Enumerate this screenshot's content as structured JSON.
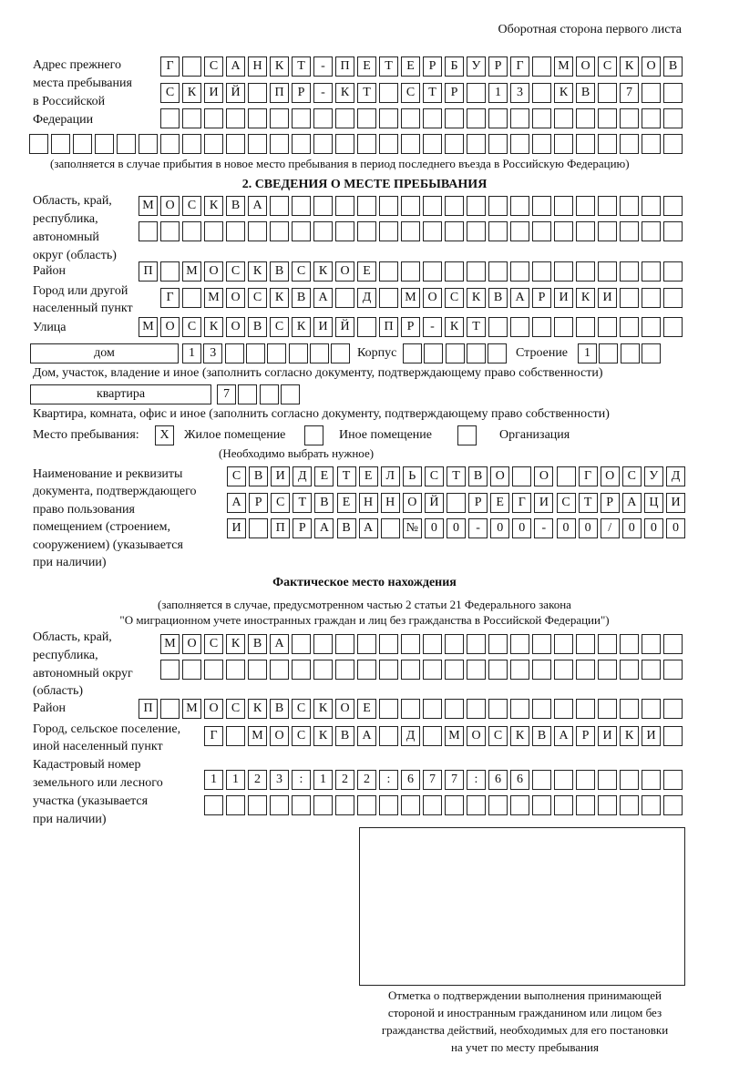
{
  "header": "Оборотная сторона первого листа",
  "prev_address": {
    "label": [
      "Адрес прежнего",
      "места пребывания",
      "в Российской",
      "Федерации"
    ],
    "rows": [
      [
        "Г",
        "",
        "С",
        "А",
        "Н",
        "К",
        "Т",
        "-",
        "П",
        "Е",
        "Т",
        "Е",
        "Р",
        "Б",
        "У",
        "Р",
        "Г",
        "",
        "М",
        "О",
        "С",
        "К",
        "О",
        "В"
      ],
      [
        "С",
        "К",
        "И",
        "Й",
        "",
        "П",
        "Р",
        "-",
        "К",
        "Т",
        "",
        "С",
        "Т",
        "Р",
        "",
        "1",
        "3",
        "",
        "К",
        "В",
        "",
        "7",
        "",
        ""
      ],
      [
        "",
        "",
        "",
        "",
        "",
        "",
        "",
        "",
        "",
        "",
        "",
        "",
        "",
        "",
        "",
        "",
        "",
        "",
        "",
        "",
        "",
        "",
        "",
        ""
      ],
      [
        "",
        "",
        "",
        "",
        "",
        "",
        "",
        "",
        "",
        "",
        "",
        "",
        "",
        "",
        "",
        "",
        "",
        "",
        "",
        "",
        "",
        "",
        "",
        "",
        "",
        "",
        "",
        "",
        "",
        ""
      ]
    ],
    "note": "(заполняется в случае прибытия в новое место пребывания в период последнего въезда в Российскую Федерацию)"
  },
  "section2": {
    "title": "2. СВЕДЕНИЯ О МЕСТЕ ПРЕБЫВАНИЯ",
    "region_label": [
      "Область, край,",
      "республика,",
      "автономный",
      "округ (область)"
    ],
    "region_rows": [
      [
        "М",
        "О",
        "С",
        "К",
        "В",
        "А",
        "",
        "",
        "",
        "",
        "",
        "",
        "",
        "",
        "",
        "",
        "",
        "",
        "",
        "",
        "",
        "",
        "",
        "",
        ""
      ],
      [
        "",
        "",
        "",
        "",
        "",
        "",
        "",
        "",
        "",
        "",
        "",
        "",
        "",
        "",
        "",
        "",
        "",
        "",
        "",
        "",
        "",
        "",
        "",
        "",
        ""
      ]
    ],
    "district_label": "Район",
    "district": [
      "П",
      "",
      "М",
      "О",
      "С",
      "К",
      "В",
      "С",
      "К",
      "О",
      "Е",
      "",
      "",
      "",
      "",
      "",
      "",
      "",
      "",
      "",
      "",
      "",
      "",
      "",
      ""
    ],
    "city_label": [
      "Город или другой",
      "населенный пункт"
    ],
    "city": [
      "Г",
      "",
      "М",
      "О",
      "С",
      "К",
      "В",
      "А",
      "",
      "Д",
      "",
      "М",
      "О",
      "С",
      "К",
      "В",
      "А",
      "Р",
      "И",
      "К",
      "И",
      "",
      "",
      ""
    ],
    "street_label": "Улица",
    "street": [
      "М",
      "О",
      "С",
      "К",
      "О",
      "В",
      "С",
      "К",
      "И",
      "Й",
      "",
      "П",
      "Р",
      "-",
      "К",
      "Т",
      "",
      "",
      "",
      "",
      "",
      "",
      "",
      "",
      ""
    ],
    "house_type": "дом",
    "house": [
      "1",
      "3",
      "",
      "",
      "",
      "",
      "",
      ""
    ],
    "korpus_label": "Корпус",
    "korpus": [
      "",
      "",
      "",
      "",
      ""
    ],
    "stroenie_label": "Строение",
    "stroenie": [
      "1",
      "",
      "",
      ""
    ],
    "house_note": "Дом, участок, владение и иное (заполнить согласно документу, подтверждающему право собственности)",
    "flat_type": "квартира",
    "flat": [
      "7",
      "",
      "",
      ""
    ],
    "flat_note": "Квартира, комната, офис и иное (заполнить согласно документу, подтверждающему право собственности)",
    "stay_label": "Место пребывания:",
    "stay_options": [
      {
        "mark": "X",
        "label": "Жилое помещение",
        "checked": true
      },
      {
        "mark": "",
        "label": "Иное помещение",
        "checked": false
      },
      {
        "mark": "",
        "label": "Организация",
        "checked": false
      }
    ],
    "stay_note": "(Необходимо выбрать нужное)",
    "doc_label": [
      "Наименование и реквизиты",
      "документа, подтверждающего",
      "право пользования",
      "помещением (строением,",
      "сооружением) (указывается",
      "при наличии)"
    ],
    "doc_rows": [
      [
        "С",
        "В",
        "И",
        "Д",
        "Е",
        "Т",
        "Е",
        "Л",
        "Ь",
        "С",
        "Т",
        "В",
        "О",
        "",
        "О",
        "",
        "Г",
        "О",
        "С",
        "У",
        "Д"
      ],
      [
        "А",
        "Р",
        "С",
        "Т",
        "В",
        "Е",
        "Н",
        "Н",
        "О",
        "Й",
        "",
        "Р",
        "Е",
        "Г",
        "И",
        "С",
        "Т",
        "Р",
        "А",
        "Ц",
        "И"
      ],
      [
        "И",
        "",
        "П",
        "Р",
        "А",
        "В",
        "А",
        "",
        "№",
        "0",
        "0",
        "-",
        "0",
        "0",
        "-",
        "0",
        "0",
        "/",
        "0",
        "0",
        "0"
      ]
    ]
  },
  "actual": {
    "title": "Фактическое место нахождения",
    "note": [
      "(заполняется в случае, предусмотренном частью 2 статьи 21 Федерального закона",
      "\"О миграционном учете иностранных граждан и лиц без гражданства в Российской Федерации\")"
    ],
    "region_label": [
      "Область, край,",
      "республика,",
      "автономный округ",
      "(область)"
    ],
    "region_rows": [
      [
        "М",
        "О",
        "С",
        "К",
        "В",
        "А",
        "",
        "",
        "",
        "",
        "",
        "",
        "",
        "",
        "",
        "",
        "",
        "",
        "",
        "",
        "",
        "",
        "",
        ""
      ],
      [
        "",
        "",
        "",
        "",
        "",
        "",
        "",
        "",
        "",
        "",
        "",
        "",
        "",
        "",
        "",
        "",
        "",
        "",
        "",
        "",
        "",
        "",
        "",
        ""
      ]
    ],
    "district_label": "Район",
    "district": [
      "П",
      "",
      "М",
      "О",
      "С",
      "К",
      "В",
      "С",
      "К",
      "О",
      "Е",
      "",
      "",
      "",
      "",
      "",
      "",
      "",
      "",
      "",
      "",
      "",
      "",
      "",
      ""
    ],
    "city_label": [
      "Город, сельское поселение,",
      "иной населенный пункт"
    ],
    "city": [
      "Г",
      "",
      "М",
      "О",
      "С",
      "К",
      "В",
      "А",
      "",
      "Д",
      "",
      "М",
      "О",
      "С",
      "К",
      "В",
      "А",
      "Р",
      "И",
      "К",
      "И",
      ""
    ],
    "cadastral_label": [
      "Кадастровый номер",
      "земельного или лесного",
      "участка (указывается",
      "при наличии)"
    ],
    "cadastral_rows": [
      [
        "1",
        "1",
        "2",
        "3",
        ":",
        "1",
        "2",
        "2",
        ":",
        "6",
        "7",
        "7",
        ":",
        "6",
        "6",
        "",
        "",
        "",
        "",
        "",
        "",
        ""
      ],
      [
        "",
        "",
        "",
        "",
        "",
        "",
        "",
        "",
        "",
        "",
        "",
        "",
        "",
        "",
        "",
        "",
        "",
        "",
        "",
        "",
        "",
        ""
      ]
    ],
    "stamp_caption": [
      "Отметка о подтверждении выполнения принимающей",
      "стороной и иностранным гражданином или лицом без",
      "гражданства действий, необходимых для его постановки",
      "на учет по месту пребывания"
    ]
  }
}
